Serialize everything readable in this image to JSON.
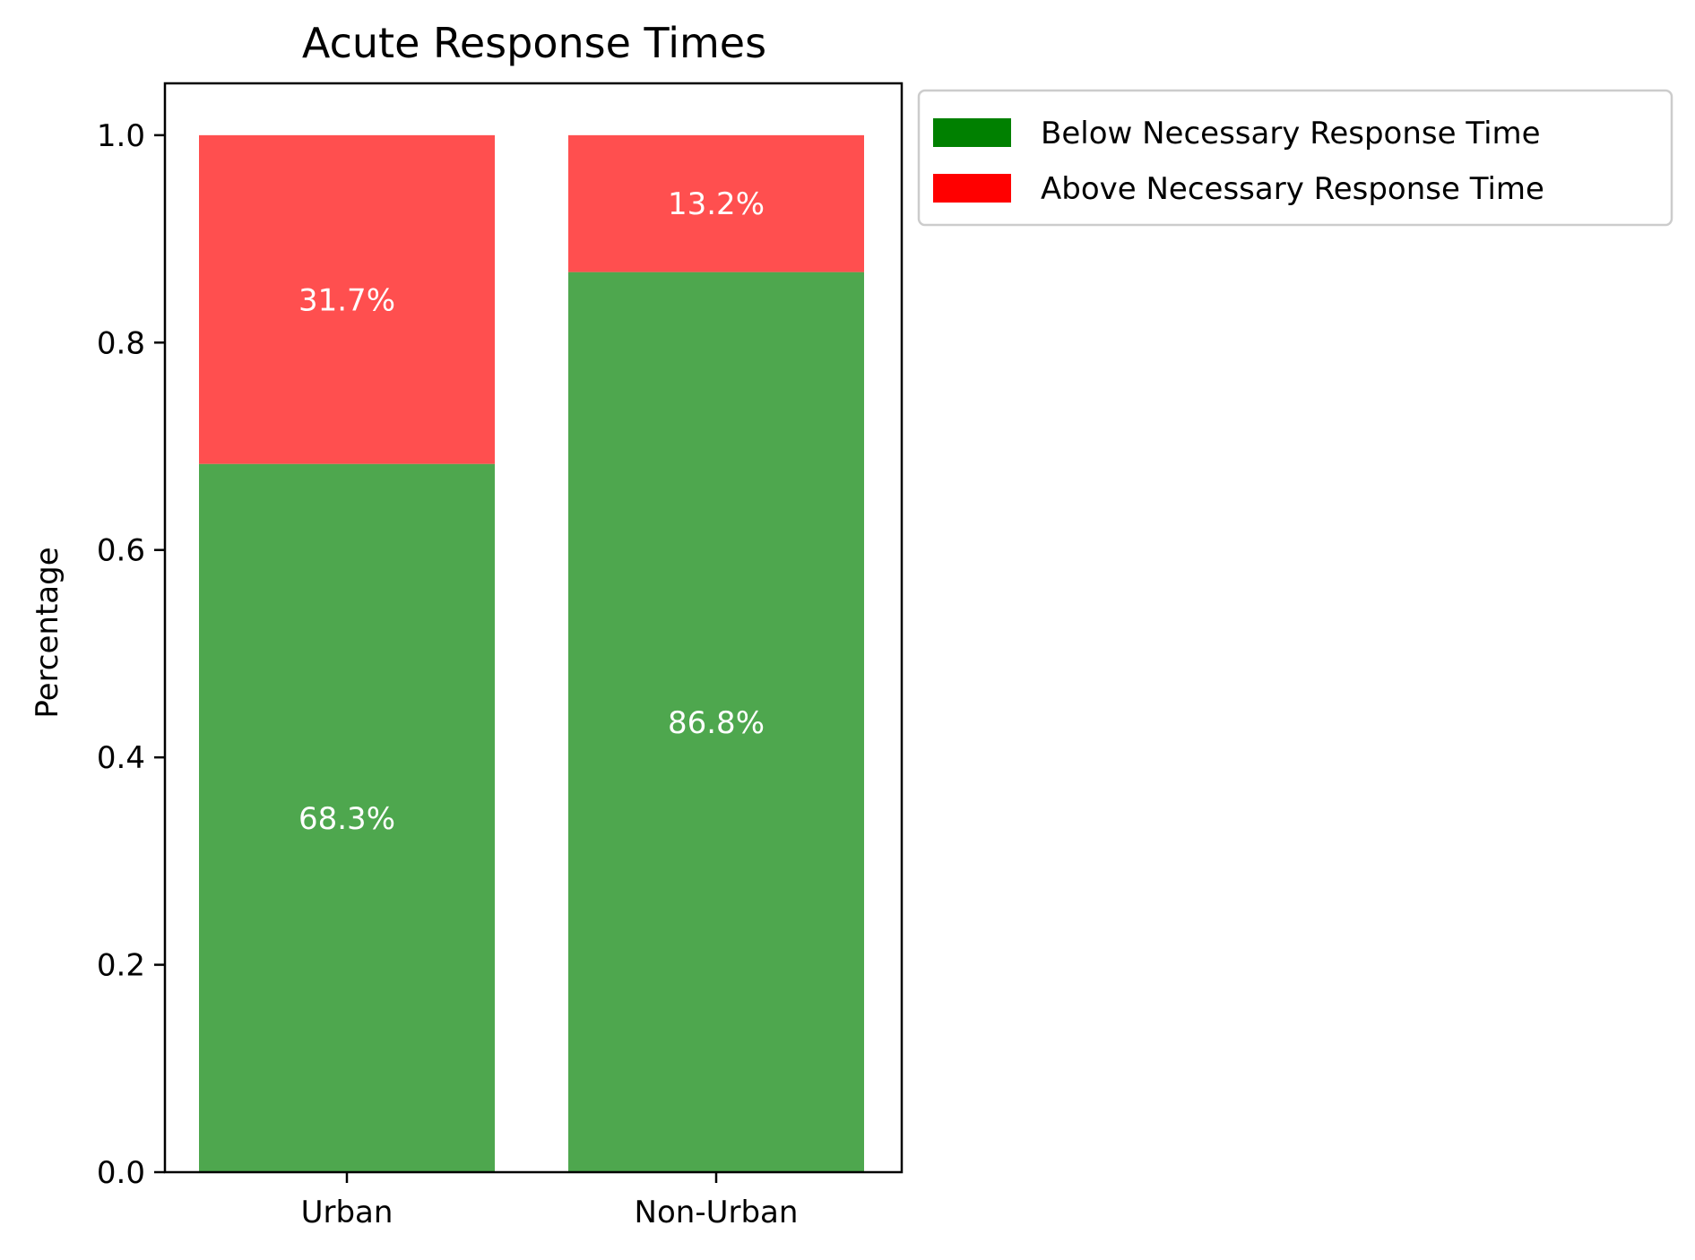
{
  "chart_data": {
    "type": "bar",
    "stacked": true,
    "title": "Acute Response Times",
    "xlabel": "",
    "ylabel": "Percentage",
    "categories": [
      "Urban",
      "Non-Urban"
    ],
    "series": [
      {
        "name": "Below Necessary Response Time",
        "values": [
          0.683,
          0.868
        ],
        "labels": [
          "68.3%",
          "86.8%"
        ],
        "color": "#4ea74e",
        "legend_color": "#008000"
      },
      {
        "name": "Above Necessary Response Time",
        "values": [
          0.317,
          0.132
        ],
        "labels": [
          "31.7%",
          "13.2%"
        ],
        "color": "#ff4f4f",
        "legend_color": "#ff0000"
      }
    ],
    "ylim": [
      0,
      1.05
    ],
    "yticks": [
      0.0,
      0.2,
      0.4,
      0.6,
      0.8,
      1.0
    ],
    "ytick_labels": [
      "0.0",
      "0.2",
      "0.4",
      "0.6",
      "0.8",
      "1.0"
    ],
    "grid": false,
    "legend_position": "outside top-right",
    "data_label_color": "#ffffff"
  }
}
